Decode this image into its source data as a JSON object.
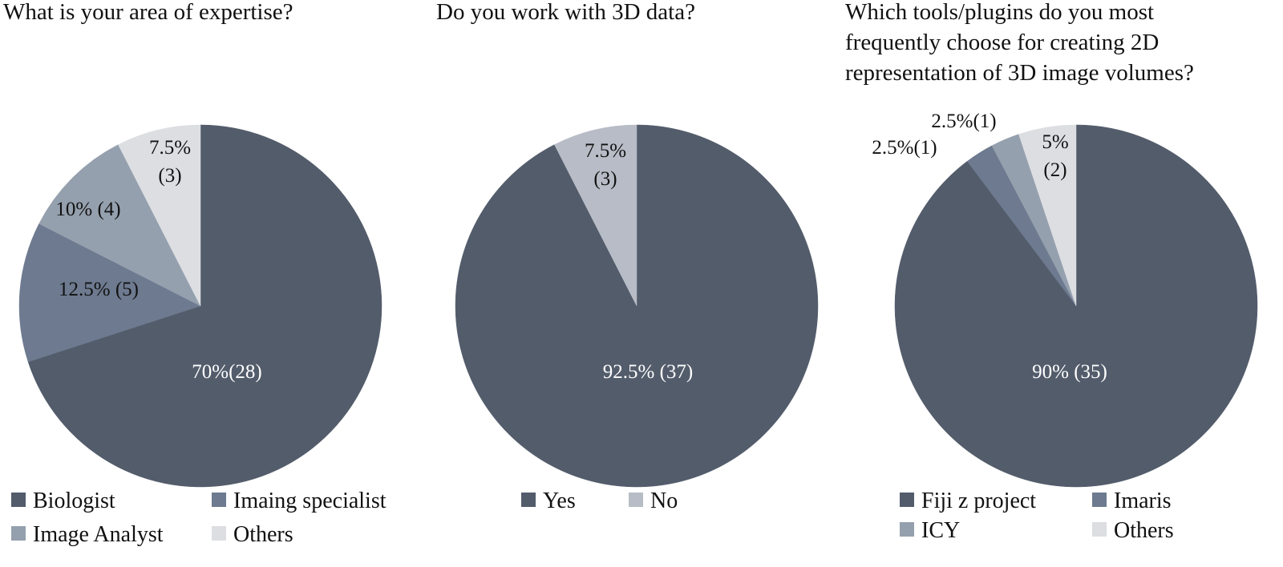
{
  "colors": {
    "c1": "#535c6b",
    "c2": "#6d7a8f",
    "c3": "#95a0ae",
    "c4": "#dcdee2",
    "c_no": "#b7bcc6"
  },
  "chart_data": [
    {
      "type": "pie",
      "title_lines": [
        "What is your area of expertise?"
      ],
      "slices": [
        {
          "name": "Biologist",
          "value": 28,
          "percent": 70,
          "label": "70%(28)",
          "color": "#535c6b"
        },
        {
          "name": "Imaing specialist",
          "value": 5,
          "percent": 12.5,
          "label": "12.5% (5)",
          "color": "#6d7a8f"
        },
        {
          "name": "Image Analyst",
          "value": 4,
          "percent": 10,
          "label": "10% (4)",
          "color": "#95a0ae"
        },
        {
          "name": "Others",
          "value": 3,
          "percent": 7.5,
          "label_lines": [
            "7.5%",
            "(3)"
          ],
          "color": "#dcdee2"
        }
      ]
    },
    {
      "type": "pie",
      "title_lines": [
        "Do you work with 3D data?"
      ],
      "slices": [
        {
          "name": "Yes",
          "value": 37,
          "percent": 92.5,
          "label": "92.5% (37)",
          "color": "#535c6b"
        },
        {
          "name": "No",
          "value": 3,
          "percent": 7.5,
          "label_lines": [
            "7.5%",
            "(3)"
          ],
          "color": "#b7bcc6"
        }
      ]
    },
    {
      "type": "pie",
      "title_lines": [
        "Which tools/plugins do you most",
        "frequently choose for creating 2D",
        "representation of 3D image volumes?"
      ],
      "slices": [
        {
          "name": "Fiji z project",
          "value": 35,
          "percent": 90,
          "label": "90% (35)",
          "color": "#535c6b"
        },
        {
          "name": "Imaris",
          "value": 1,
          "percent": 2.5,
          "label": "2.5%(1)",
          "color": "#6d7a8f"
        },
        {
          "name": "ICY",
          "value": 1,
          "percent": 2.5,
          "label": "2.5%(1)",
          "color": "#95a0ae"
        },
        {
          "name": "Others",
          "value": 2,
          "percent": 5,
          "label_lines": [
            "5%",
            "(2)"
          ],
          "color": "#dcdee2"
        }
      ]
    }
  ]
}
